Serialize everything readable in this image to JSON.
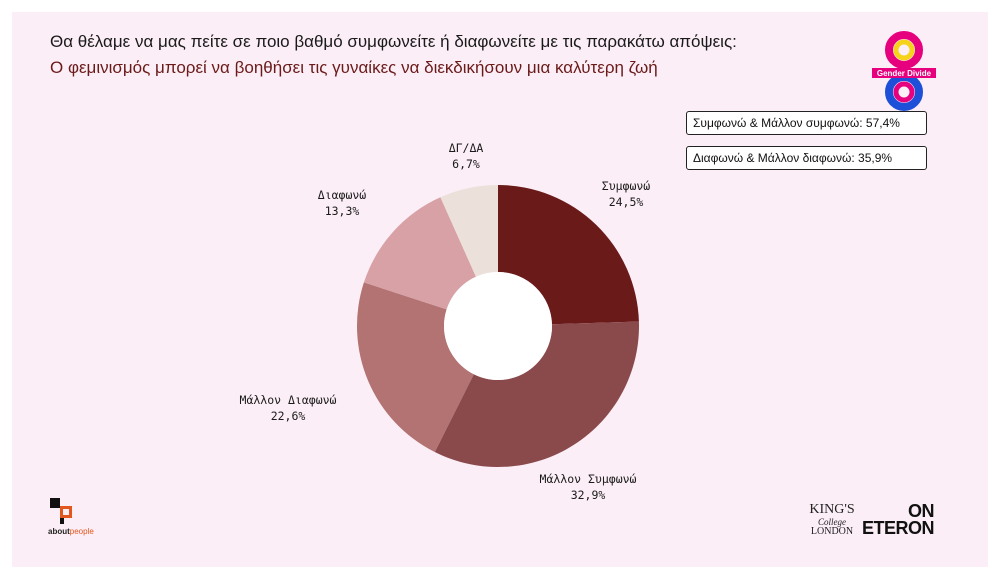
{
  "title": "Θα θέλαμε να μας πείτε σε ποιο βαθμό συμφωνείτε ή διαφωνείτε με τις παρακάτω απόψεις:",
  "subtitle": "Ο φεμινισμός μπορεί να βοηθήσει  τις γυναίκες να διεκδικήσουν μια καλύτερη ζωή",
  "summary": {
    "agree": "Συμφωνώ & Μάλλον συμφωνώ: 57,4%",
    "disagree": "Διαφωνώ & Μάλλον διαφωνώ: 35,9%"
  },
  "chart_data": {
    "type": "pie",
    "donut": true,
    "labels": [
      "Συμφωνώ",
      "Μάλλον Συμφωνώ",
      "Μάλλον Διαφωνώ",
      "Διαφωνώ",
      "ΔΓ/ΔΑ"
    ],
    "values": [
      24.5,
      32.9,
      22.6,
      13.3,
      6.7
    ],
    "value_labels": [
      "24,5%",
      "32,9%",
      "22,6%",
      "13,3%",
      "6,7%"
    ],
    "colors": [
      "#6b1a1a",
      "#8a4a4c",
      "#b27372",
      "#d7a1a6",
      "#ebe0da"
    ],
    "start": "12 o'clock",
    "direction": "clockwise"
  },
  "logos": {
    "gender_divide": "Gender Divide",
    "about_prefix": "about",
    "about_suffix": "people",
    "kcl_line1": "KING'S",
    "kcl_line2": "College",
    "kcl_line3": "LONDON",
    "on": "ON",
    "eteron": "ETERON"
  }
}
